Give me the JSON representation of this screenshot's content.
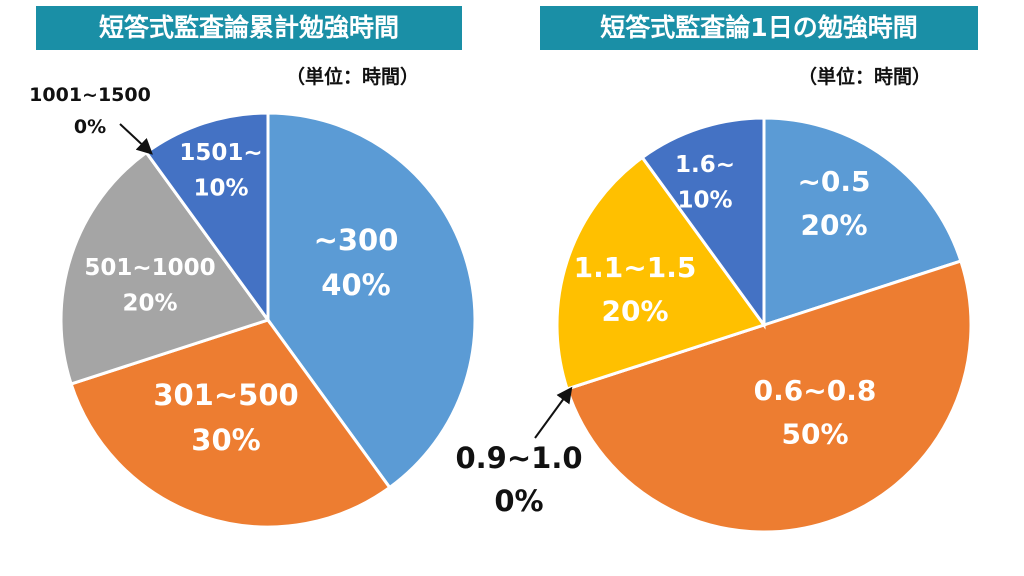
{
  "chart_data": [
    {
      "type": "pie",
      "title": "短答式監査論累計勉強時間",
      "unit_note": "（単位：時間）",
      "colors": [
        "#5b9bd5",
        "#ed7d31",
        "#a5a5a5",
        "#ffc000",
        "#4472c4"
      ],
      "slices": [
        {
          "name": "~300",
          "value": 40,
          "percent": "40%",
          "color": "#5b9bd5"
        },
        {
          "name": "301~500",
          "value": 30,
          "percent": "30%",
          "color": "#ed7d31"
        },
        {
          "name": "501~1000",
          "value": 20,
          "percent": "20%",
          "color": "#a5a5a5"
        },
        {
          "name": "1001~1500",
          "value": 0,
          "percent": "0%",
          "color": "#ffc000"
        },
        {
          "name": "1501~",
          "value": 10,
          "percent": "10%",
          "color": "#4472c4"
        }
      ]
    },
    {
      "type": "pie",
      "title": "短答式監査論1日の勉強時間",
      "unit_note": "（単位：時間）",
      "colors": [
        "#5b9bd5",
        "#ed7d31",
        "#a5a5a5",
        "#ffc000",
        "#4472c4"
      ],
      "slices": [
        {
          "name": "~0.5",
          "value": 20,
          "percent": "20%",
          "color": "#5b9bd5"
        },
        {
          "name": "0.6~0.8",
          "value": 50,
          "percent": "50%",
          "color": "#ed7d31"
        },
        {
          "name": "0.9~1.0",
          "value": 0,
          "percent": "0%",
          "color": "#a5a5a5"
        },
        {
          "name": "1.1~1.5",
          "value": 20,
          "percent": "20%",
          "color": "#ffc000"
        },
        {
          "name": "1.6~",
          "value": 10,
          "percent": "10%",
          "color": "#4472c4"
        }
      ]
    }
  ]
}
